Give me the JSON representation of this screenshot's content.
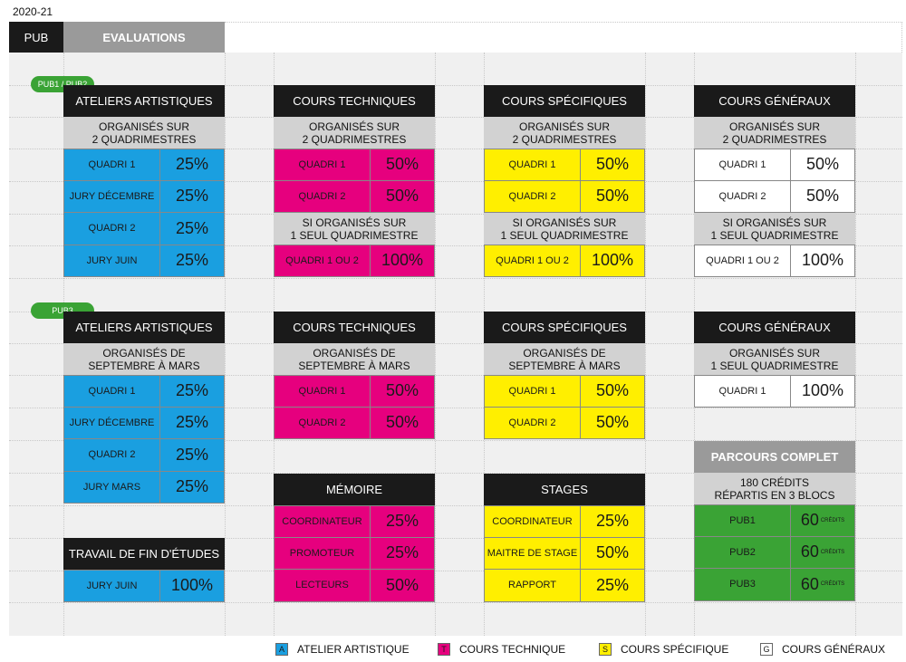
{
  "year": "2020-21",
  "header": {
    "pub": "PUB",
    "evaluations": "EVALUATIONS"
  },
  "pills": {
    "pub12": "PUB1 / PUB2",
    "pub3": "PUB3"
  },
  "colors": {
    "A": "#1a9fe0",
    "T": "#e6007e",
    "S": "#ffef00",
    "G": "#ffffff",
    "P": "#3aa335"
  },
  "blocks": [
    {
      "id": "b1",
      "title": "ATELIERS ARTISTIQUES",
      "rows": [
        {
          "sub": "ORGANISÉS SUR\n2 QUADRIMESTRES"
        },
        {
          "l": "QUADRI 1",
          "r": "25%",
          "c": "A"
        },
        {
          "l": "JURY DÉCEMBRE",
          "r": "25%",
          "c": "A"
        },
        {
          "l": "QUADRI 2",
          "r": "25%",
          "c": "A"
        },
        {
          "l": "JURY JUIN",
          "r": "25%",
          "c": "A"
        }
      ]
    },
    {
      "id": "b2",
      "title": "COURS TECHNIQUES",
      "rows": [
        {
          "sub": "ORGANISÉS SUR\n2 QUADRIMESTRES"
        },
        {
          "l": "QUADRI 1",
          "r": "50%",
          "c": "T"
        },
        {
          "l": "QUADRI 2",
          "r": "50%",
          "c": "T"
        },
        {
          "sub": "SI ORGANISÉS SUR\n1 SEUL QUADRIMESTRE"
        },
        {
          "l": "QUADRI 1 OU 2",
          "r": "100%",
          "c": "T"
        }
      ]
    },
    {
      "id": "b3",
      "title": "COURS SPÉCIFIQUES",
      "rows": [
        {
          "sub": "ORGANISÉS SUR\n2 QUADRIMESTRES"
        },
        {
          "l": "QUADRI 1",
          "r": "50%",
          "c": "S"
        },
        {
          "l": "QUADRI 2",
          "r": "50%",
          "c": "S"
        },
        {
          "sub": "SI ORGANISÉS SUR\n1 SEUL QUADRIMESTRE"
        },
        {
          "l": "QUADRI 1 OU 2",
          "r": "100%",
          "c": "S"
        }
      ]
    },
    {
      "id": "b4",
      "title": "COURS GÉNÉRAUX",
      "rows": [
        {
          "sub": "ORGANISÉS SUR\n2 QUADRIMESTRES"
        },
        {
          "l": "QUADRI 1",
          "r": "50%",
          "c": "G"
        },
        {
          "l": "QUADRI 2",
          "r": "50%",
          "c": "G"
        },
        {
          "sub": "SI ORGANISÉS SUR\n1 SEUL QUADRIMESTRE"
        },
        {
          "l": "QUADRI 1 OU 2",
          "r": "100%",
          "c": "G"
        }
      ]
    },
    {
      "id": "b5",
      "title": "ATELIERS ARTISTIQUES",
      "rows": [
        {
          "sub": "ORGANISÉS DE\nSEPTEMBRE À MARS"
        },
        {
          "l": "QUADRI 1",
          "r": "25%",
          "c": "A"
        },
        {
          "l": "JURY DÉCEMBRE",
          "r": "25%",
          "c": "A"
        },
        {
          "l": "QUADRI 2",
          "r": "25%",
          "c": "A"
        },
        {
          "l": "JURY MARS",
          "r": "25%",
          "c": "A"
        }
      ]
    },
    {
      "id": "b6",
      "title": "COURS TECHNIQUES",
      "rows": [
        {
          "sub": "ORGANISÉS DE\nSEPTEMBRE À MARS"
        },
        {
          "l": "QUADRI 1",
          "r": "50%",
          "c": "T"
        },
        {
          "l": "QUADRI 2",
          "r": "50%",
          "c": "T"
        }
      ]
    },
    {
      "id": "b7",
      "title": "COURS SPÉCIFIQUES",
      "rows": [
        {
          "sub": "ORGANISÉS DE\nSEPTEMBRE À MARS"
        },
        {
          "l": "QUADRI 1",
          "r": "50%",
          "c": "S"
        },
        {
          "l": "QUADRI 2",
          "r": "50%",
          "c": "S"
        }
      ]
    },
    {
      "id": "b8",
      "title": "COURS GÉNÉRAUX",
      "rows": [
        {
          "sub": "ORGANISÉS SUR\n1 SEUL QUADRIMESTRE"
        },
        {
          "l": "QUADRI 1",
          "r": "100%",
          "c": "G"
        }
      ]
    },
    {
      "id": "b9",
      "title": "TRAVAIL DE FIN D'ÉTUDES",
      "rows": [
        {
          "l": "JURY JUIN",
          "r": "100%",
          "c": "A"
        }
      ]
    },
    {
      "id": "b10",
      "title": "MÉMOIRE",
      "rows": [
        {
          "l": "COORDINATEUR",
          "r": "25%",
          "c": "T"
        },
        {
          "l": "PROMOTEUR",
          "r": "25%",
          "c": "T"
        },
        {
          "l": "LECTEURS",
          "r": "50%",
          "c": "T"
        }
      ]
    },
    {
      "id": "b11",
      "title": "STAGES",
      "rows": [
        {
          "l": "COORDINATEUR",
          "r": "25%",
          "c": "S"
        },
        {
          "l": "MAITRE DE STAGE",
          "r": "50%",
          "c": "S"
        },
        {
          "l": "RAPPORT",
          "r": "25%",
          "c": "S"
        }
      ]
    },
    {
      "id": "b12",
      "title": "PARCOURS COMPLET",
      "grey": true,
      "rows": [
        {
          "sub": "180 CRÉDITS\nRÉPARTIS EN 3 BLOCS"
        },
        {
          "l": "PUB1",
          "r": "60",
          "sup": "CRÉDITS",
          "c": "P"
        },
        {
          "l": "PUB2",
          "r": "60",
          "sup": "CRÉDITS",
          "c": "P"
        },
        {
          "l": "PUB3",
          "r": "60",
          "sup": "CRÉDITS",
          "c": "P"
        }
      ]
    }
  ],
  "legend": [
    {
      "code": "A",
      "label": "ATELIER ARTISTIQUE",
      "c": "A"
    },
    {
      "code": "T",
      "label": "COURS TECHNIQUE",
      "c": "T"
    },
    {
      "code": "S",
      "label": "COURS SPÉCIFIQUE",
      "c": "S"
    },
    {
      "code": "G",
      "label": "COURS GÉNÉRAUX",
      "c": "G"
    }
  ]
}
